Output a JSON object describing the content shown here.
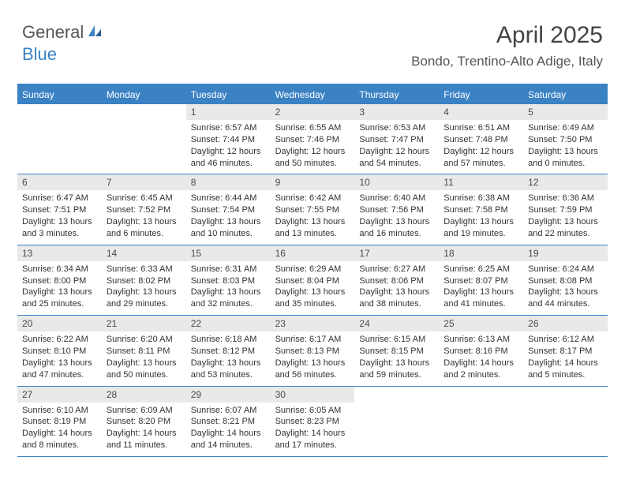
{
  "logo": {
    "part1": "General",
    "part2": "Blue"
  },
  "title": "April 2025",
  "location": "Bondo, Trentino-Alto Adige, Italy",
  "colors": {
    "accent": "#3b82c4",
    "daynum_bg": "#e9e9e9",
    "text": "#333333",
    "header_text": "#555555"
  },
  "day_names": [
    "Sunday",
    "Monday",
    "Tuesday",
    "Wednesday",
    "Thursday",
    "Friday",
    "Saturday"
  ],
  "weeks": [
    [
      null,
      null,
      {
        "n": "1",
        "sr": "Sunrise: 6:57 AM",
        "ss": "Sunset: 7:44 PM",
        "dl": "Daylight: 12 hours and 46 minutes."
      },
      {
        "n": "2",
        "sr": "Sunrise: 6:55 AM",
        "ss": "Sunset: 7:46 PM",
        "dl": "Daylight: 12 hours and 50 minutes."
      },
      {
        "n": "3",
        "sr": "Sunrise: 6:53 AM",
        "ss": "Sunset: 7:47 PM",
        "dl": "Daylight: 12 hours and 54 minutes."
      },
      {
        "n": "4",
        "sr": "Sunrise: 6:51 AM",
        "ss": "Sunset: 7:48 PM",
        "dl": "Daylight: 12 hours and 57 minutes."
      },
      {
        "n": "5",
        "sr": "Sunrise: 6:49 AM",
        "ss": "Sunset: 7:50 PM",
        "dl": "Daylight: 13 hours and 0 minutes."
      }
    ],
    [
      {
        "n": "6",
        "sr": "Sunrise: 6:47 AM",
        "ss": "Sunset: 7:51 PM",
        "dl": "Daylight: 13 hours and 3 minutes."
      },
      {
        "n": "7",
        "sr": "Sunrise: 6:45 AM",
        "ss": "Sunset: 7:52 PM",
        "dl": "Daylight: 13 hours and 6 minutes."
      },
      {
        "n": "8",
        "sr": "Sunrise: 6:44 AM",
        "ss": "Sunset: 7:54 PM",
        "dl": "Daylight: 13 hours and 10 minutes."
      },
      {
        "n": "9",
        "sr": "Sunrise: 6:42 AM",
        "ss": "Sunset: 7:55 PM",
        "dl": "Daylight: 13 hours and 13 minutes."
      },
      {
        "n": "10",
        "sr": "Sunrise: 6:40 AM",
        "ss": "Sunset: 7:56 PM",
        "dl": "Daylight: 13 hours and 16 minutes."
      },
      {
        "n": "11",
        "sr": "Sunrise: 6:38 AM",
        "ss": "Sunset: 7:58 PM",
        "dl": "Daylight: 13 hours and 19 minutes."
      },
      {
        "n": "12",
        "sr": "Sunrise: 6:36 AM",
        "ss": "Sunset: 7:59 PM",
        "dl": "Daylight: 13 hours and 22 minutes."
      }
    ],
    [
      {
        "n": "13",
        "sr": "Sunrise: 6:34 AM",
        "ss": "Sunset: 8:00 PM",
        "dl": "Daylight: 13 hours and 25 minutes."
      },
      {
        "n": "14",
        "sr": "Sunrise: 6:33 AM",
        "ss": "Sunset: 8:02 PM",
        "dl": "Daylight: 13 hours and 29 minutes."
      },
      {
        "n": "15",
        "sr": "Sunrise: 6:31 AM",
        "ss": "Sunset: 8:03 PM",
        "dl": "Daylight: 13 hours and 32 minutes."
      },
      {
        "n": "16",
        "sr": "Sunrise: 6:29 AM",
        "ss": "Sunset: 8:04 PM",
        "dl": "Daylight: 13 hours and 35 minutes."
      },
      {
        "n": "17",
        "sr": "Sunrise: 6:27 AM",
        "ss": "Sunset: 8:06 PM",
        "dl": "Daylight: 13 hours and 38 minutes."
      },
      {
        "n": "18",
        "sr": "Sunrise: 6:25 AM",
        "ss": "Sunset: 8:07 PM",
        "dl": "Daylight: 13 hours and 41 minutes."
      },
      {
        "n": "19",
        "sr": "Sunrise: 6:24 AM",
        "ss": "Sunset: 8:08 PM",
        "dl": "Daylight: 13 hours and 44 minutes."
      }
    ],
    [
      {
        "n": "20",
        "sr": "Sunrise: 6:22 AM",
        "ss": "Sunset: 8:10 PM",
        "dl": "Daylight: 13 hours and 47 minutes."
      },
      {
        "n": "21",
        "sr": "Sunrise: 6:20 AM",
        "ss": "Sunset: 8:11 PM",
        "dl": "Daylight: 13 hours and 50 minutes."
      },
      {
        "n": "22",
        "sr": "Sunrise: 6:18 AM",
        "ss": "Sunset: 8:12 PM",
        "dl": "Daylight: 13 hours and 53 minutes."
      },
      {
        "n": "23",
        "sr": "Sunrise: 6:17 AM",
        "ss": "Sunset: 8:13 PM",
        "dl": "Daylight: 13 hours and 56 minutes."
      },
      {
        "n": "24",
        "sr": "Sunrise: 6:15 AM",
        "ss": "Sunset: 8:15 PM",
        "dl": "Daylight: 13 hours and 59 minutes."
      },
      {
        "n": "25",
        "sr": "Sunrise: 6:13 AM",
        "ss": "Sunset: 8:16 PM",
        "dl": "Daylight: 14 hours and 2 minutes."
      },
      {
        "n": "26",
        "sr": "Sunrise: 6:12 AM",
        "ss": "Sunset: 8:17 PM",
        "dl": "Daylight: 14 hours and 5 minutes."
      }
    ],
    [
      {
        "n": "27",
        "sr": "Sunrise: 6:10 AM",
        "ss": "Sunset: 8:19 PM",
        "dl": "Daylight: 14 hours and 8 minutes."
      },
      {
        "n": "28",
        "sr": "Sunrise: 6:09 AM",
        "ss": "Sunset: 8:20 PM",
        "dl": "Daylight: 14 hours and 11 minutes."
      },
      {
        "n": "29",
        "sr": "Sunrise: 6:07 AM",
        "ss": "Sunset: 8:21 PM",
        "dl": "Daylight: 14 hours and 14 minutes."
      },
      {
        "n": "30",
        "sr": "Sunrise: 6:05 AM",
        "ss": "Sunset: 8:23 PM",
        "dl": "Daylight: 14 hours and 17 minutes."
      },
      null,
      null,
      null
    ]
  ]
}
